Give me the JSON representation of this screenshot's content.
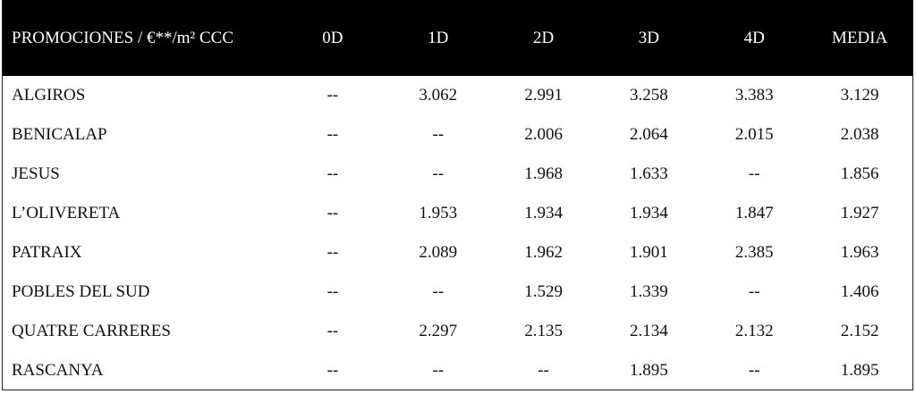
{
  "table": {
    "header": [
      "PROMOCIONES / €**/m² CCC",
      "0D",
      "1D",
      "2D",
      "3D",
      "4D",
      "MEDIA"
    ],
    "rows": [
      [
        "ALGIROS",
        "--",
        "3.062",
        "2.991",
        "3.258",
        "3.383",
        "3.129"
      ],
      [
        "BENICALAP",
        "--",
        "--",
        "2.006",
        "2.064",
        "2.015",
        "2.038"
      ],
      [
        "JESUS",
        "--",
        "--",
        "1.968",
        "1.633",
        "--",
        "1.856"
      ],
      [
        "L’OLIVERETA",
        "--",
        "1.953",
        "1.934",
        "1.934",
        "1.847",
        "1.927"
      ],
      [
        "PATRAIX",
        "--",
        "2.089",
        "1.962",
        "1.901",
        "2.385",
        "1.963"
      ],
      [
        "POBLES DEL SUD",
        "--",
        "--",
        "1.529",
        "1.339",
        "--",
        "1.406"
      ],
      [
        "QUATRE CARRERES",
        "--",
        "2.297",
        "2.135",
        "2.134",
        "2.132",
        "2.152"
      ],
      [
        "RASCANYA",
        "--",
        "--",
        "--",
        "1.895",
        "--",
        "1.895"
      ]
    ]
  }
}
